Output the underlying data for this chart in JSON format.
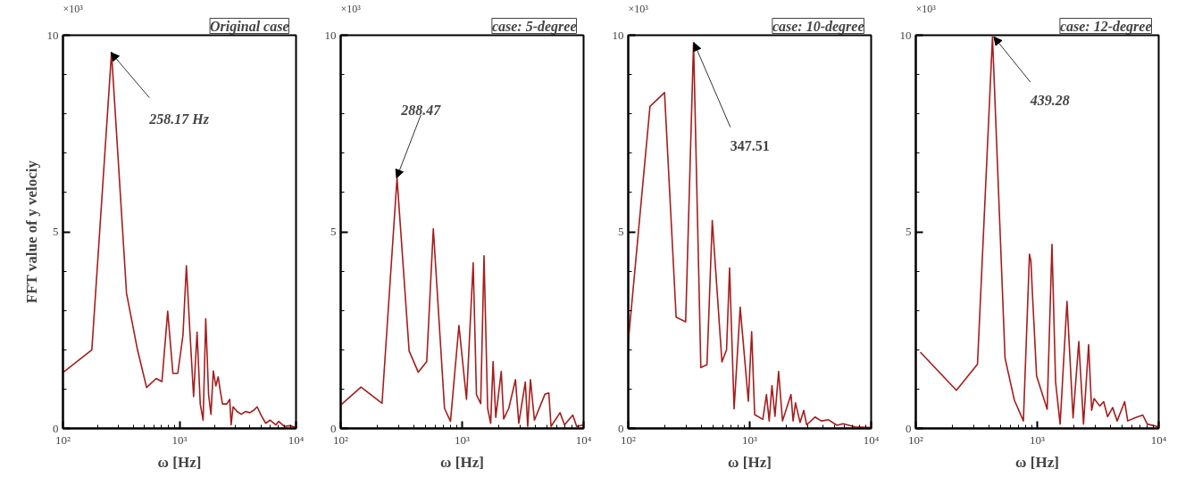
{
  "chart_data": [
    {
      "type": "line",
      "title": "Original case",
      "xlabel": "ω [Hz]",
      "ylabel": "FFT value of y velociy",
      "log": "x",
      "xlim": [
        100,
        10000
      ],
      "ylim": [
        0,
        10
      ],
      "xticks": [
        {
          "value": 100,
          "label": "10²"
        },
        {
          "value": 1000,
          "label": "10³"
        },
        {
          "value": 10000,
          "label": "10⁴"
        }
      ],
      "yticks": [
        0,
        5,
        10
      ],
      "annotations": [
        "×10³",
        {
          "text": "258.17 Hz",
          "x": 258.17,
          "y": 9.56
        }
      ],
      "x": [
        100,
        177,
        261,
        351,
        436,
        522,
        631,
        707,
        792,
        878,
        967,
        1071,
        1146,
        1227,
        1321,
        1415,
        1507,
        1595,
        1680,
        1778,
        1862,
        1950,
        2051,
        2147,
        2234,
        2339,
        2547,
        2698,
        2773,
        2884,
        3112,
        3388,
        3690,
        4018,
        4375,
        4634,
        5047,
        5495,
        5984,
        6714,
        7096,
        7962,
        8913,
        10000
      ],
      "series": [
        {
          "color": "#a81c1c",
          "values": [
            1.42,
            2.0,
            9.56,
            3.44,
            2.0,
            1.04,
            1.27,
            1.19,
            2.98,
            1.4,
            1.4,
            2.37,
            4.14,
            2.49,
            0.81,
            2.45,
            0.62,
            0.21,
            2.79,
            0.85,
            0.36,
            1.46,
            1.08,
            1.31,
            0.97,
            0.62,
            0.62,
            0.74,
            0.09,
            0.55,
            0.43,
            0.36,
            0.43,
            0.4,
            0.47,
            0.55,
            0.32,
            0.13,
            0.21,
            0.09,
            0.18,
            0.05,
            0.07,
            0.03
          ]
        }
      ]
    },
    {
      "type": "line",
      "title": "case: 5-degree",
      "xlabel": "ω [Hz]",
      "log": "x",
      "xlim": [
        100,
        10000
      ],
      "ylim": [
        0,
        10
      ],
      "xticks": [
        {
          "value": 100,
          "label": "10²"
        },
        {
          "value": 1000,
          "label": "10³"
        },
        {
          "value": 10000,
          "label": "10⁴"
        }
      ],
      "yticks": [
        0,
        5,
        10
      ],
      "annotations": [
        "×10³",
        {
          "text": "288.47",
          "x": 288.47,
          "y": 6.37
        }
      ],
      "x": [
        100,
        147,
        219,
        291,
        366,
        435,
        511,
        579,
        716,
        802,
        941,
        1086,
        1233,
        1312,
        1422,
        1514,
        1622,
        1718,
        1798,
        1892,
        2099,
        2198,
        2421,
        2748,
        2926,
        3313,
        3468,
        3652,
        3936,
        4808,
        5176,
        5395,
        6398,
        6968,
        8146,
        8770,
        10000
      ],
      "series": [
        {
          "color": "#a81c1c",
          "values": [
            0.59,
            1.05,
            0.64,
            6.37,
            1.97,
            1.43,
            1.7,
            5.08,
            0.51,
            0.18,
            2.62,
            0.74,
            4.21,
            0.86,
            0.63,
            4.39,
            0.51,
            0.13,
            1.7,
            0.28,
            1.45,
            0.24,
            0.51,
            1.24,
            0.13,
            1.18,
            0.05,
            1.24,
            0.21,
            0.87,
            0.9,
            0.05,
            0.4,
            0.09,
            0.34,
            0.05,
            0.09
          ]
        }
      ]
    },
    {
      "type": "line",
      "title": "case: 10-degree",
      "xlabel": "ω [Hz]",
      "log": "x",
      "xlim": [
        100,
        10000
      ],
      "ylim": [
        0,
        10
      ],
      "xticks": [
        {
          "value": 100,
          "label": "10²"
        },
        {
          "value": 1000,
          "label": "10³"
        },
        {
          "value": 10000,
          "label": "10⁴"
        }
      ],
      "yticks": [
        0,
        5,
        10
      ],
      "annotations": [
        "×10³",
        {
          "text": "347.51",
          "x": 347.51,
          "y": 9.81
        }
      ],
      "x": [
        100,
        151,
        199,
        248,
        297,
        345,
        396,
        445,
        492,
        591,
        645,
        683,
        744,
        835,
        975,
        1038,
        1099,
        1283,
        1374,
        1448,
        1525,
        1615,
        1730,
        1863,
        2188,
        2277,
        2384,
        2600,
        2786,
        2946,
        3460,
        3881,
        4456,
        5234,
        5866,
        7379,
        10000
      ],
      "series": [
        {
          "color": "#a81c1c",
          "values": [
            2.19,
            8.19,
            8.54,
            2.83,
            2.71,
            9.81,
            1.55,
            1.62,
            5.29,
            1.69,
            2.0,
            4.08,
            0.5,
            3.08,
            0.69,
            2.46,
            0.35,
            0.23,
            0.86,
            0.19,
            1.09,
            0.31,
            1.45,
            0.19,
            0.86,
            0.19,
            0.65,
            0.15,
            0.46,
            0.09,
            0.29,
            0.19,
            0.22,
            0.08,
            0.12,
            0.04,
            0.02
          ]
        }
      ]
    },
    {
      "type": "line",
      "title": "case: 12-degree",
      "xlabel": "ω [Hz]",
      "log": "x",
      "xlim": [
        100,
        10000
      ],
      "ylim": [
        0,
        10
      ],
      "xticks": [
        {
          "value": 100,
          "label": "10²"
        },
        {
          "value": 1000,
          "label": "10³"
        },
        {
          "value": 10000,
          "label": "10⁴"
        }
      ],
      "yticks": [
        0,
        5,
        10
      ],
      "annotations": [
        "×10³",
        {
          "text": "439.28",
          "x": 439.28,
          "y": 9.96
        }
      ],
      "x": [
        109,
        216,
        322,
        428,
        543,
        648,
        769,
        863,
        887,
        913,
        988,
        1207,
        1322,
        1416,
        1543,
        1758,
        1972,
        2198,
        2404,
        2649,
        2806,
        2938,
        3273,
        3524,
        3796,
        4179,
        4550,
        5248,
        5559,
        6412,
        7396,
        8054,
        10000
      ],
      "series": [
        {
          "color": "#a81c1c",
          "values": [
            1.94,
            0.97,
            1.63,
            9.96,
            1.79,
            0.72,
            0.19,
            4.43,
            4.26,
            3.42,
            1.33,
            0.49,
            4.68,
            1.18,
            0.11,
            3.23,
            0.27,
            2.21,
            0.11,
            2.13,
            0.46,
            0.76,
            0.57,
            0.68,
            0.3,
            0.53,
            0.19,
            0.68,
            0.19,
            0.27,
            0.34,
            0.11,
            0.04
          ]
        }
      ]
    }
  ]
}
